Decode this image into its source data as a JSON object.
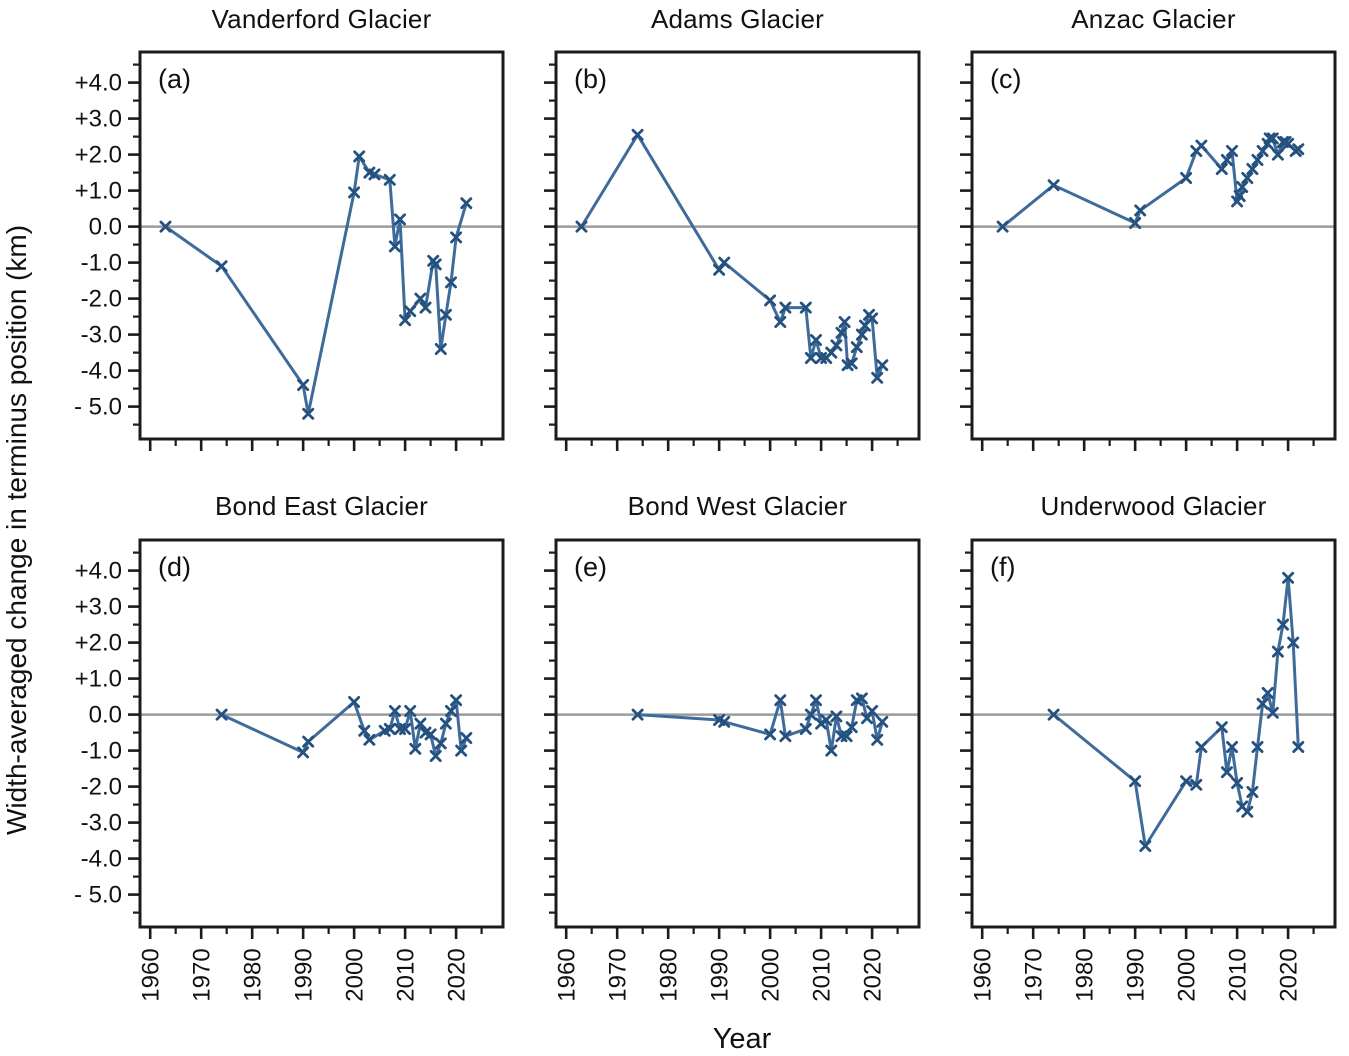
{
  "figure": {
    "ylabel": "Width-averaged change in terminus position (km)",
    "xlabel": "Year"
  },
  "colors": {
    "line": "#3f6b9a",
    "marker": "#24517e",
    "zero_line": "#9b9b9b",
    "axis": "#1b1b1b",
    "text": "#111111",
    "background": "#ffffff"
  },
  "axes": {
    "x_major_ticks": [
      1960,
      1970,
      1980,
      1990,
      2000,
      2010,
      2020
    ],
    "x_minor_ticks": [
      1965,
      1975,
      1985,
      1995,
      2005,
      2015,
      2025
    ],
    "x_tick_labels": [
      "1960",
      "1970",
      "1980",
      "1990",
      "2000",
      "2010",
      "2020"
    ],
    "y_major_ticks": [
      4,
      3,
      2,
      1,
      0,
      -1,
      -2,
      -3,
      -4,
      -5
    ],
    "y_minor_ticks": [
      4.5,
      3.5,
      2.5,
      1.5,
      0.5,
      -0.5,
      -1.5,
      -2.5,
      -3.5,
      -4.5,
      -5.5
    ],
    "y_tick_labels": [
      "+4.0",
      "+3.0",
      "+2.0",
      "+1.0",
      "0.0",
      "-1.0",
      "-2.0",
      "-3.0",
      "-4.0",
      "- 5.0"
    ],
    "xlim": [
      1958,
      2029.2
    ],
    "ylim": [
      -5.9,
      4.85
    ],
    "grid": false,
    "zero_reference_line": 0
  },
  "chart_data": [
    {
      "type": "line",
      "marker": "x",
      "panel_label": "(a)",
      "title": "Vanderford Glacier",
      "x": [
        1963,
        1974,
        1990,
        1991,
        2000,
        2001,
        2003,
        2004,
        2007,
        2008,
        2009,
        2010,
        2011,
        2013,
        2014,
        2015.5,
        2016,
        2017,
        2018,
        2019,
        2020,
        2022
      ],
      "y": [
        0.0,
        -1.1,
        -4.4,
        -5.2,
        0.95,
        1.95,
        1.5,
        1.45,
        1.3,
        -0.55,
        0.2,
        -2.6,
        -2.35,
        -2.0,
        -2.25,
        -0.95,
        -1.05,
        -3.4,
        -2.45,
        -1.55,
        -0.3,
        0.65
      ]
    },
    {
      "type": "line",
      "marker": "x",
      "panel_label": "(b)",
      "title": "Adams Glacier",
      "x": [
        1963,
        1974,
        1990,
        1991,
        2000,
        2002,
        2003,
        2007,
        2008,
        2009,
        2010,
        2011,
        2012,
        2013,
        2014,
        2014.6,
        2015.2,
        2016,
        2017,
        2018,
        2018.6,
        2019.4,
        2020,
        2021,
        2022
      ],
      "y": [
        0.0,
        2.55,
        -1.2,
        -1.0,
        -2.05,
        -2.65,
        -2.25,
        -2.25,
        -3.65,
        -3.15,
        -3.65,
        -3.65,
        -3.5,
        -3.3,
        -2.95,
        -2.65,
        -3.85,
        -3.8,
        -3.35,
        -3.0,
        -2.75,
        -2.45,
        -2.55,
        -4.2,
        -3.85
      ]
    },
    {
      "type": "line",
      "marker": "x",
      "panel_label": "(c)",
      "title": "Anzac Glacier",
      "x": [
        1964,
        1974,
        1990,
        1991,
        2000,
        2002,
        2003,
        2007,
        2008,
        2009,
        2010,
        2010.5,
        2011,
        2012,
        2013,
        2014,
        2015,
        2016,
        2016.4,
        2017,
        2018,
        2019,
        2019.5,
        2020,
        2021.5,
        2022
      ],
      "y": [
        0.0,
        1.15,
        0.1,
        0.45,
        1.35,
        2.1,
        2.25,
        1.6,
        1.85,
        2.1,
        0.7,
        0.85,
        1.1,
        1.35,
        1.6,
        1.85,
        2.1,
        2.3,
        2.45,
        2.45,
        2.0,
        2.35,
        2.35,
        2.3,
        2.1,
        2.15
      ]
    },
    {
      "type": "line",
      "marker": "x",
      "panel_label": "(d)",
      "title": "Bond East Glacier",
      "x": [
        1974,
        1990,
        1991,
        2000,
        2002,
        2003,
        2006,
        2007,
        2008,
        2009,
        2010,
        2011,
        2012,
        2013,
        2014,
        2015,
        2016,
        2017,
        2018,
        2019,
        2020,
        2021,
        2022
      ],
      "y": [
        0.0,
        -1.05,
        -0.75,
        0.35,
        -0.45,
        -0.7,
        -0.45,
        -0.4,
        0.1,
        -0.4,
        -0.4,
        0.1,
        -0.95,
        -0.25,
        -0.5,
        -0.55,
        -1.15,
        -0.8,
        -0.25,
        0.1,
        0.4,
        -1.0,
        -0.65
      ]
    },
    {
      "type": "line",
      "marker": "x",
      "panel_label": "(e)",
      "title": "Bond West Glacier",
      "x": [
        1974,
        1990,
        1991,
        2000,
        2002,
        2003,
        2007,
        2008,
        2009,
        2010,
        2011,
        2012,
        2013,
        2014,
        2015,
        2016,
        2017,
        2018,
        2019,
        2020,
        2021,
        2022
      ],
      "y": [
        0.0,
        -0.15,
        -0.2,
        -0.55,
        0.4,
        -0.6,
        -0.4,
        0.0,
        0.4,
        -0.25,
        -0.15,
        -1.0,
        -0.05,
        -0.6,
        -0.6,
        -0.35,
        0.4,
        0.45,
        -0.1,
        0.1,
        -0.7,
        -0.2
      ]
    },
    {
      "type": "line",
      "marker": "x",
      "panel_label": "(f)",
      "title": "Underwood Glacier",
      "x": [
        1974,
        1990,
        1992,
        2000,
        2002,
        2003,
        2007,
        2008,
        2009,
        2010,
        2011,
        2012,
        2013,
        2014,
        2015,
        2016,
        2017,
        2018,
        2019,
        2020,
        2021,
        2022
      ],
      "y": [
        0.0,
        -1.85,
        -3.65,
        -1.85,
        -1.95,
        -0.9,
        -0.35,
        -1.6,
        -0.9,
        -1.9,
        -2.55,
        -2.7,
        -2.15,
        -0.9,
        0.3,
        0.6,
        0.05,
        1.75,
        2.5,
        3.8,
        2.0,
        -0.9
      ]
    }
  ]
}
